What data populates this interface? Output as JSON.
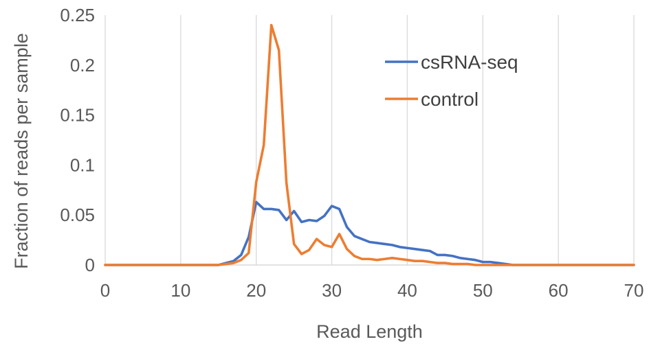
{
  "chart_data": {
    "type": "line",
    "title": "",
    "xlabel": "Read Length",
    "ylabel": "Fraction of reads per sample",
    "xlim": [
      0,
      70
    ],
    "ylim": [
      0,
      0.25
    ],
    "x_ticks": [
      "0",
      "10",
      "20",
      "30",
      "40",
      "50",
      "60",
      "70"
    ],
    "y_ticks": [
      "0",
      "0.05",
      "0.1",
      "0.15",
      "0.2",
      "0.25"
    ],
    "grid": "vertical",
    "legend_position": "top-right",
    "x": [
      0,
      1,
      2,
      3,
      4,
      5,
      6,
      7,
      8,
      9,
      10,
      11,
      12,
      13,
      14,
      15,
      16,
      17,
      18,
      19,
      20,
      21,
      22,
      23,
      24,
      25,
      26,
      27,
      28,
      29,
      30,
      31,
      32,
      33,
      34,
      35,
      36,
      37,
      38,
      39,
      40,
      41,
      42,
      43,
      44,
      45,
      46,
      47,
      48,
      49,
      50,
      51,
      52,
      53,
      54,
      55,
      56,
      57,
      58,
      59,
      60,
      61,
      62,
      63,
      64,
      65,
      66,
      67,
      68,
      69,
      70
    ],
    "series": [
      {
        "name": "csRNA-seq",
        "color": "#4472C4",
        "values": [
          0,
          0,
          0,
          0,
          0,
          0,
          0,
          0,
          0,
          0,
          0,
          0,
          0,
          0,
          0,
          0,
          0.002,
          0.004,
          0.01,
          0.028,
          0.063,
          0.056,
          0.056,
          0.055,
          0.045,
          0.054,
          0.043,
          0.045,
          0.044,
          0.049,
          0.059,
          0.056,
          0.038,
          0.029,
          0.026,
          0.023,
          0.022,
          0.021,
          0.02,
          0.018,
          0.017,
          0.016,
          0.015,
          0.014,
          0.01,
          0.01,
          0.009,
          0.007,
          0.006,
          0.005,
          0.003,
          0.003,
          0.002,
          0.001,
          0,
          0,
          0,
          0,
          0,
          0,
          0,
          0,
          0,
          0,
          0,
          0,
          0,
          0,
          0,
          0,
          0
        ]
      },
      {
        "name": "control",
        "color": "#ED7D31",
        "values": [
          0,
          0,
          0,
          0,
          0,
          0,
          0,
          0,
          0,
          0,
          0,
          0,
          0,
          0,
          0,
          0,
          0.001,
          0.002,
          0.005,
          0.012,
          0.083,
          0.12,
          0.24,
          0.215,
          0.082,
          0.021,
          0.011,
          0.015,
          0.026,
          0.02,
          0.018,
          0.031,
          0.016,
          0.009,
          0.006,
          0.006,
          0.005,
          0.006,
          0.007,
          0.006,
          0.005,
          0.004,
          0.004,
          0.003,
          0.002,
          0.002,
          0.001,
          0.001,
          0.001,
          0,
          0,
          0,
          0,
          0,
          0,
          0,
          0,
          0,
          0,
          0,
          0,
          0,
          0,
          0,
          0,
          0,
          0,
          0,
          0,
          0,
          0
        ]
      }
    ]
  }
}
